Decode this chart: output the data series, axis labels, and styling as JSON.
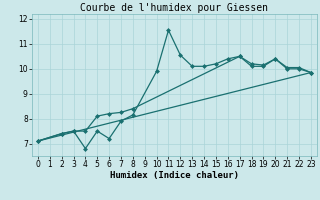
{
  "title": "Courbe de l'humidex pour Giessen",
  "xlabel": "Humidex (Indice chaleur)",
  "bg_color": "#cce8ea",
  "grid_color": "#aad4d8",
  "line_color": "#1a7070",
  "xlim": [
    -0.5,
    23.5
  ],
  "ylim": [
    6.5,
    12.2
  ],
  "yticks": [
    7,
    8,
    9,
    10,
    11,
    12
  ],
  "xticks": [
    0,
    1,
    2,
    3,
    4,
    5,
    6,
    7,
    8,
    9,
    10,
    11,
    12,
    13,
    14,
    15,
    16,
    17,
    18,
    19,
    20,
    21,
    22,
    23
  ],
  "line1_x": [
    0,
    2,
    3,
    4,
    5,
    6,
    7,
    8,
    10,
    11,
    12,
    13,
    14,
    15,
    16,
    17,
    18,
    19,
    20,
    21,
    22,
    23
  ],
  "line1_y": [
    7.1,
    7.4,
    7.5,
    6.8,
    7.5,
    7.2,
    7.9,
    8.15,
    9.9,
    11.55,
    10.55,
    10.1,
    10.1,
    10.2,
    10.4,
    10.5,
    10.1,
    10.1,
    10.4,
    10.0,
    10.0,
    9.85
  ],
  "line2_x": [
    0,
    2,
    3,
    4,
    5,
    6,
    7,
    8,
    17,
    18,
    19,
    20,
    21,
    22,
    23
  ],
  "line2_y": [
    7.1,
    7.4,
    7.5,
    7.5,
    8.1,
    8.2,
    8.25,
    8.4,
    10.5,
    10.2,
    10.15,
    10.4,
    10.05,
    10.05,
    9.85
  ],
  "line3_x": [
    0,
    23
  ],
  "line3_y": [
    7.1,
    9.85
  ],
  "markersize": 2.5,
  "linewidth": 0.9,
  "tick_fontsize": 5.5,
  "xlabel_fontsize": 6.5,
  "title_fontsize": 7
}
